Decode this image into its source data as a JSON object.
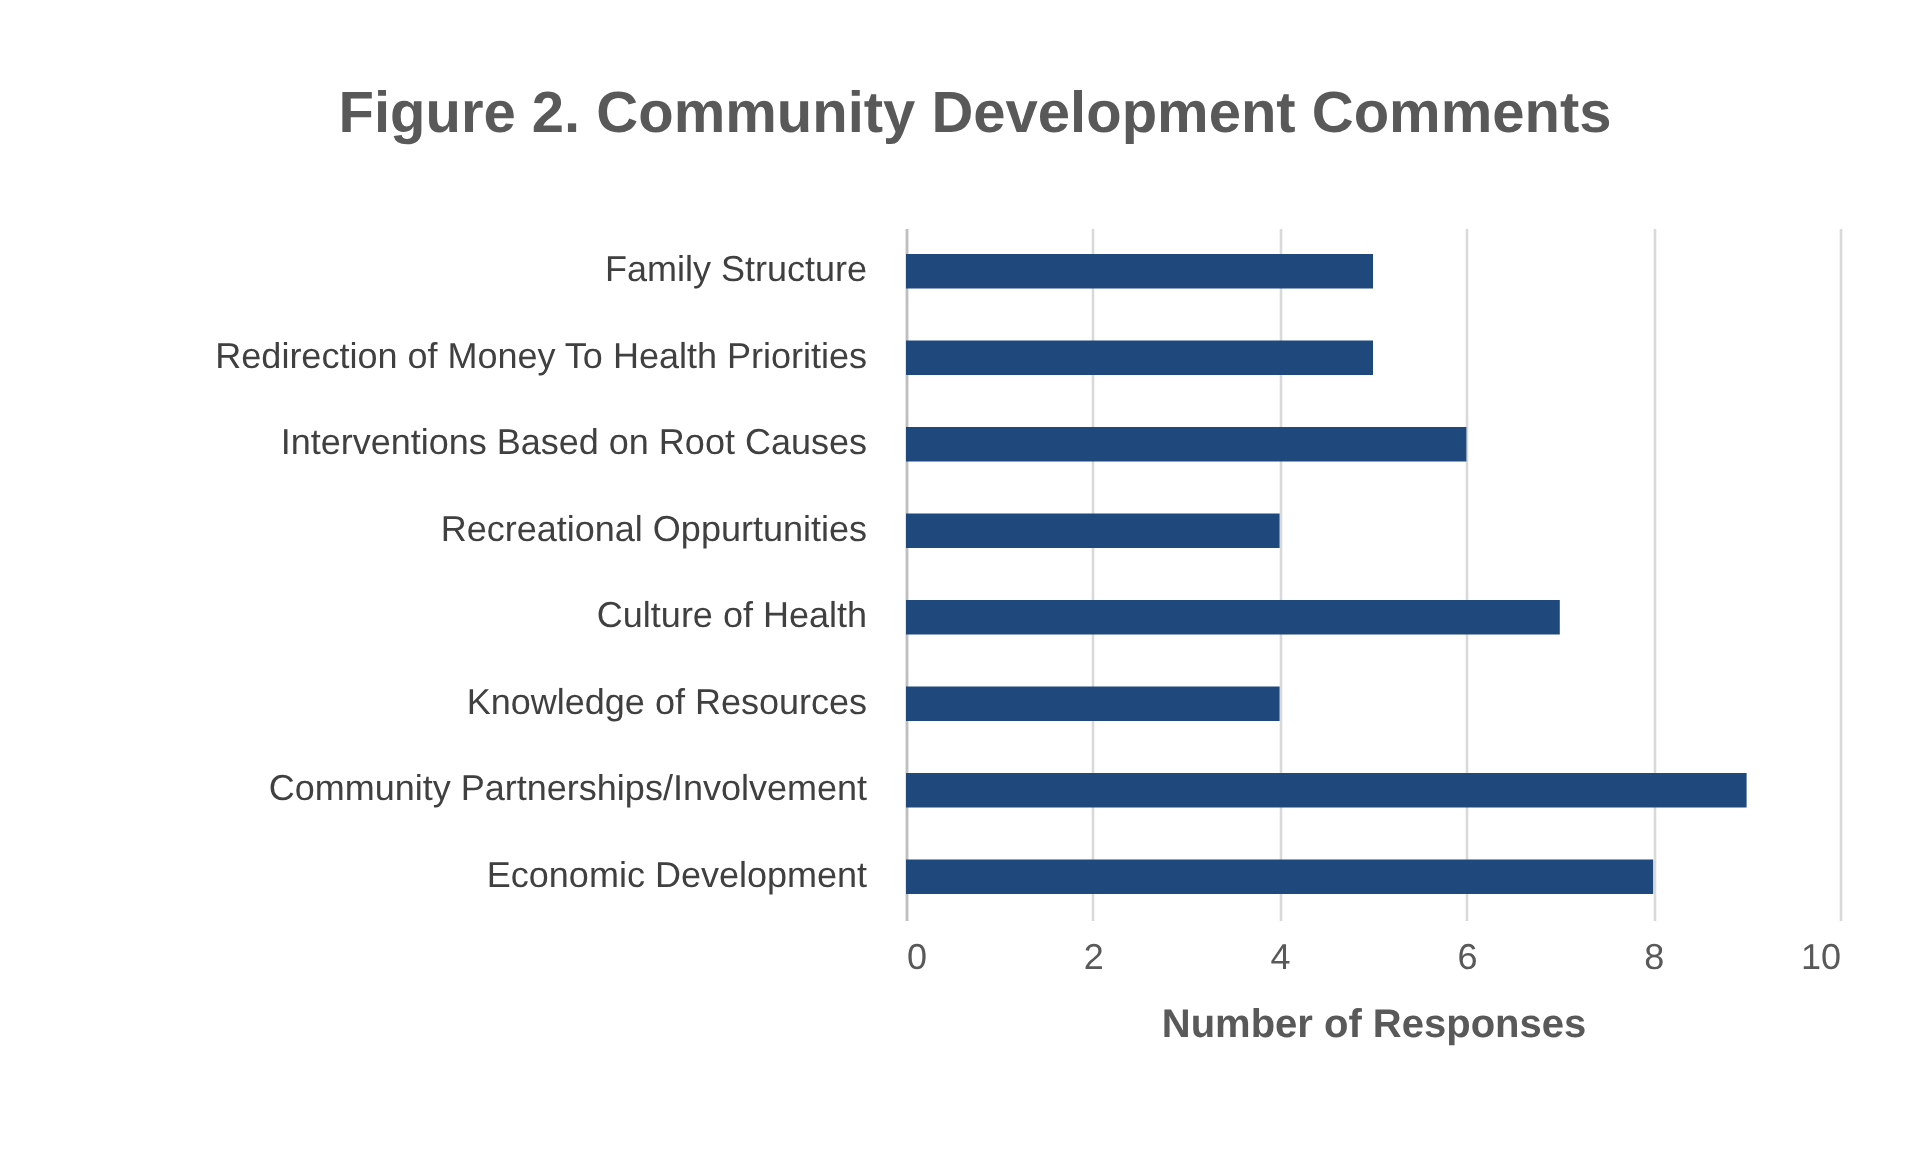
{
  "chart_data": {
    "type": "bar",
    "orientation": "horizontal",
    "title": "Figure 2. Community Development Comments",
    "xlabel": "Number of Responses",
    "categories": [
      "Family Structure",
      "Redirection of Money To Health Priorities",
      "Interventions Based on Root Causes",
      "Recreational Oppurtunities",
      "Culture of Health",
      "Knowledge of Resources",
      "Community Partnerships/Involvement",
      "Economic Development"
    ],
    "values": [
      5,
      5,
      6,
      4,
      7,
      4,
      9,
      8
    ],
    "color": "#1f497d",
    "xlim": [
      0,
      10
    ],
    "xticks": [
      0,
      2,
      4,
      6,
      8,
      10
    ],
    "grid": "x"
  }
}
